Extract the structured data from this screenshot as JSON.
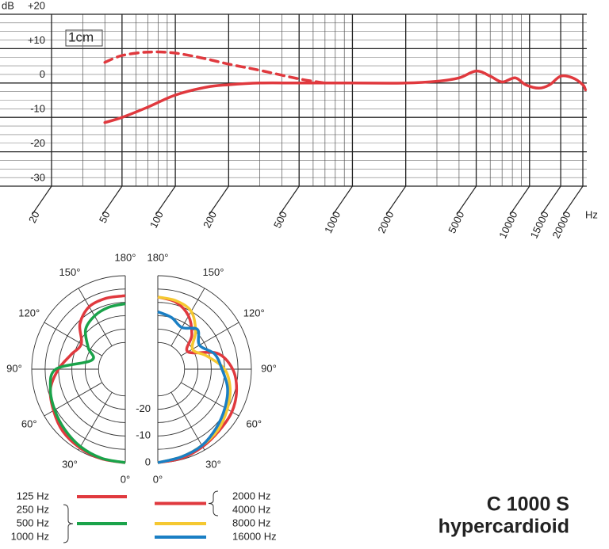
{
  "chart_data": [
    {
      "type": "line",
      "y_label": "dB",
      "x_label": "Hz",
      "annotation": "1cm",
      "xlog": true,
      "xlim": [
        20,
        20000
      ],
      "xticks": [
        20,
        50,
        100,
        200,
        500,
        1000,
        2000,
        5000,
        10000,
        15000,
        20000
      ],
      "ylim": [
        -30,
        20
      ],
      "yticks": [
        -30,
        -20,
        -10,
        0,
        {
          "value": 10,
          "label": "+10"
        },
        {
          "value": 20,
          "label": "+20"
        }
      ],
      "grid": true,
      "series": [
        {
          "color": "#e0393e",
          "dash": false,
          "x": [
            40,
            50,
            70,
            100,
            150,
            200,
            300,
            500,
            1000,
            2000,
            3000,
            4000,
            5000,
            6000,
            7000,
            8300,
            9500,
            11300,
            13000,
            15000,
            17500,
            20000,
            20700
          ],
          "values": [
            -11.5,
            -10,
            -7,
            -3.5,
            -1.2,
            -0.5,
            0,
            0,
            0,
            0,
            0.5,
            1.5,
            3.5,
            2,
            0.3,
            1.5,
            -0.5,
            -1.5,
            -0.5,
            2,
            1.5,
            -0.5,
            -2
          ]
        },
        {
          "color": "#e0393e",
          "dash": true,
          "x": [
            40,
            50,
            70,
            100,
            150,
            200,
            300,
            500,
            700
          ],
          "values": [
            6,
            8,
            9,
            8.7,
            7,
            5.5,
            3.7,
            1.2,
            0
          ]
        }
      ]
    },
    {
      "type": "polar",
      "angles": [
        0,
        15,
        30,
        45,
        60,
        75,
        90,
        105,
        120,
        135,
        150,
        165,
        180
      ],
      "thetaticks": [
        {
          "value": 0,
          "label": "0°"
        },
        {
          "value": 30,
          "label": "30°"
        },
        {
          "value": 60,
          "label": "60°"
        },
        {
          "value": 90,
          "label": "90°"
        },
        {
          "value": 120,
          "label": "120°"
        },
        {
          "value": 150,
          "label": "150°"
        },
        {
          "value": 180,
          "label": "180°"
        }
      ],
      "rlim": [
        -35,
        0
      ],
      "rticks": [
        -20,
        -10,
        0
      ],
      "series": [
        {
          "names": [
            "125 Hz"
          ],
          "color": "#e0393e",
          "side": "left",
          "values": [
            0,
            -0.3,
            -1,
            -2,
            -4,
            -6,
            -10,
            -14,
            -16,
            -11,
            -8,
            -7.5,
            -7.5
          ]
        },
        {
          "names": [
            "250 Hz",
            "500 Hz",
            "1000 Hz"
          ],
          "color": "#1aa34a",
          "side": "left",
          "values": [
            0,
            -0.5,
            -1.5,
            -3,
            -4.5,
            -6,
            -9,
            -22,
            -19,
            -14,
            -12,
            -11,
            -10.5
          ]
        },
        {
          "names": [
            "2000 Hz",
            "4000 Hz"
          ],
          "color": "#e0393e",
          "side": "right",
          "values": [
            0,
            -0.5,
            -1.5,
            -2.5,
            -3,
            -4.5,
            -7,
            -12,
            -22,
            -17,
            -12,
            -9,
            -8
          ]
        },
        {
          "names": [
            "8000 Hz"
          ],
          "color": "#f5c831",
          "side": "right",
          "values": [
            0,
            -1,
            -2,
            -3,
            -5,
            -7,
            -10,
            -16,
            -20,
            -15,
            -10,
            -8.5,
            -8
          ]
        },
        {
          "names": [
            "16000 Hz"
          ],
          "color": "#1a7fc4",
          "side": "right",
          "values": [
            0,
            -1,
            -2,
            -4,
            -6,
            -8,
            -11,
            -13,
            -17,
            -14,
            -17,
            -15,
            -13.5
          ]
        }
      ]
    }
  ],
  "product": {
    "name": "C 1000 S",
    "pattern": "hypercardioid"
  }
}
